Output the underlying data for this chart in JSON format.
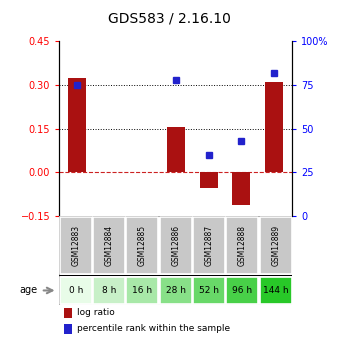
{
  "title": "GDS583 / 2.16.10",
  "samples": [
    "GSM12883",
    "GSM12884",
    "GSM12885",
    "GSM12886",
    "GSM12887",
    "GSM12888",
    "GSM12889"
  ],
  "ages": [
    "0 h",
    "8 h",
    "16 h",
    "28 h",
    "52 h",
    "96 h",
    "144 h"
  ],
  "log_ratio": [
    0.325,
    0.0,
    0.0,
    0.155,
    -0.055,
    -0.115,
    0.31
  ],
  "percentile": [
    75,
    null,
    null,
    78,
    35,
    43,
    82
  ],
  "left_ylim": [
    -0.15,
    0.45
  ],
  "right_ylim": [
    0,
    100
  ],
  "left_yticks": [
    -0.15,
    0,
    0.15,
    0.3,
    0.45
  ],
  "right_yticks": [
    0,
    25,
    50,
    75,
    100
  ],
  "right_yticklabels": [
    "0",
    "25",
    "50",
    "75",
    "100%"
  ],
  "hline_dotted": [
    0.15,
    0.3
  ],
  "bar_color": "#aa1111",
  "dot_color": "#2222cc",
  "bar_width": 0.55,
  "age_colors": [
    "#e8fce8",
    "#c8f0c8",
    "#a8e8a8",
    "#88e088",
    "#68d868",
    "#48d048",
    "#28c828"
  ],
  "gsm_bg": "#c8c8c8",
  "legend_bar_label": "log ratio",
  "legend_dot_label": "percentile rank within the sample"
}
